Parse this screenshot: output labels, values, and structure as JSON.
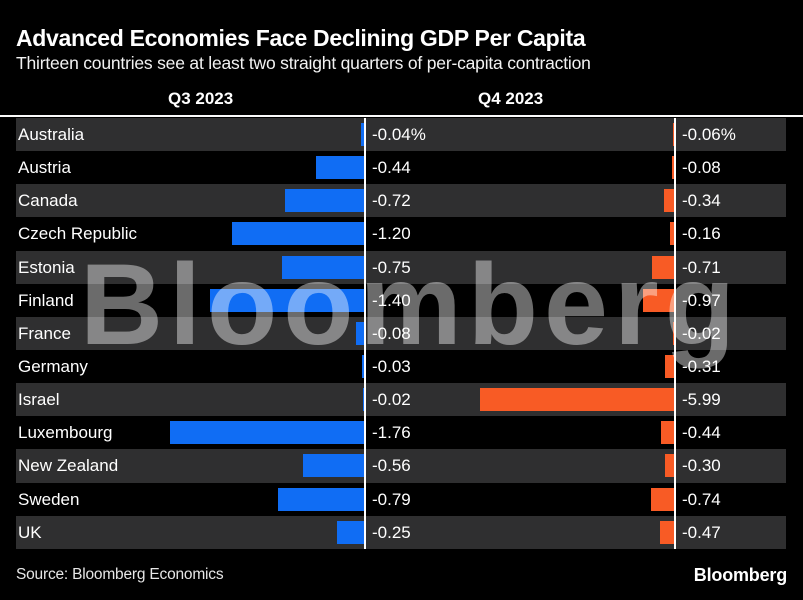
{
  "header": {
    "title": "Advanced Economies Face Declining GDP Per Capita",
    "subtitle": "Thirteen countries see at least two straight quarters of per-capita contraction"
  },
  "columns": [
    {
      "label": "Q3 2023"
    },
    {
      "label": "Q4 2023"
    }
  ],
  "watermark": "Bloomberg",
  "footer": {
    "source": "Source: Bloomberg Economics",
    "logo": "Bloomberg"
  },
  "colors": {
    "background": "#000000",
    "row_alt": "#2f2f30",
    "row_base": "#000000",
    "q3_bar": "#106df4",
    "q4_bar": "#f85b25",
    "axis_line": "#ffffff",
    "text": "#ffffff"
  },
  "chart_data": {
    "type": "bar",
    "orientation": "horizontal",
    "title": "Advanced Economies Face Declining GDP Per Capita",
    "subtitle": "Thirteen countries see at least two straight quarters of per-capita contraction",
    "unit": "%",
    "grid": false,
    "legend_position": "column-headers",
    "categories": [
      "Australia",
      "Austria",
      "Canada",
      "Czech Republic",
      "Estonia",
      "Finland",
      "France",
      "Germany",
      "Israel",
      "Luxembourg",
      "New Zealand",
      "Sweden",
      "UK"
    ],
    "series": [
      {
        "name": "Q3 2023",
        "color": "#106df4",
        "values": [
          -0.04,
          -0.44,
          -0.72,
          -1.2,
          -0.75,
          -1.4,
          -0.08,
          -0.03,
          -0.02,
          -1.76,
          -0.56,
          -0.79,
          -0.25
        ],
        "labels": [
          "-0.04%",
          "-0.44",
          "-0.72",
          "-1.20",
          "-0.75",
          "-1.40",
          "-0.08",
          "-0.03",
          "-0.02",
          "-1.76",
          "-0.56",
          "-0.79",
          "-0.25"
        ]
      },
      {
        "name": "Q4 2023",
        "color": "#f85b25",
        "values": [
          -0.06,
          -0.08,
          -0.34,
          -0.16,
          -0.71,
          -0.97,
          -0.02,
          -0.31,
          -5.99,
          -0.44,
          -0.3,
          -0.74,
          -0.47
        ],
        "labels": [
          "-0.06%",
          "-0.08",
          "-0.34",
          "-0.16",
          "-0.71",
          "-0.97",
          "-0.02",
          "-0.31",
          "-5.99",
          "-0.44",
          "-0.30",
          "-0.74",
          "-0.47"
        ]
      }
    ],
    "source": "Source: Bloomberg Economics"
  }
}
